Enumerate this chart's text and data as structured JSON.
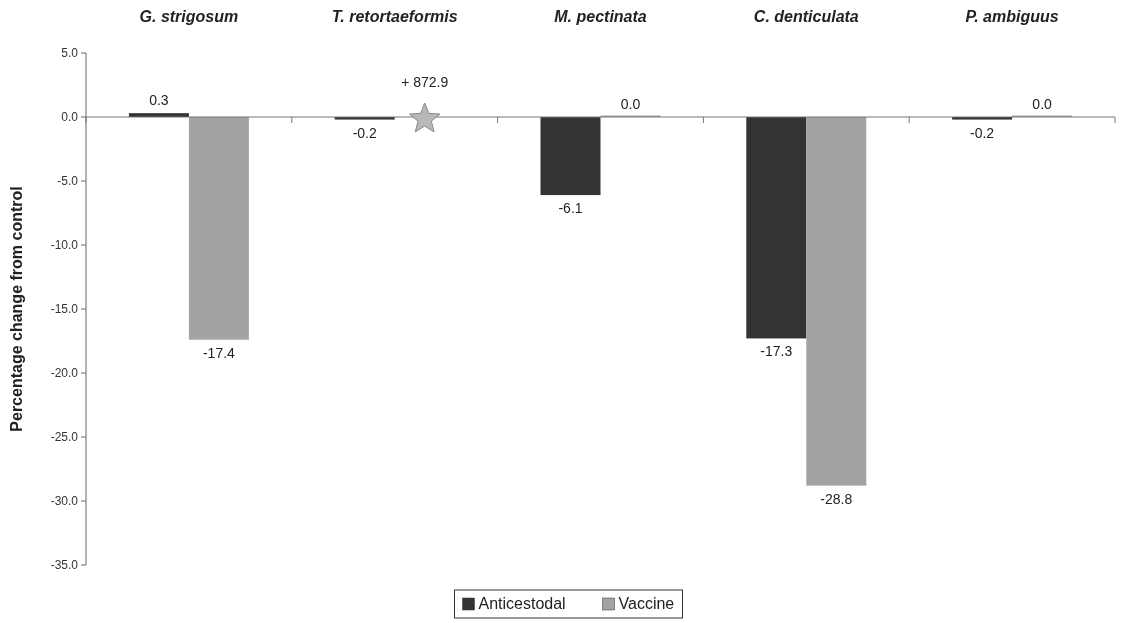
{
  "chart_data": {
    "type": "bar",
    "ylabel": "Percentage change from control",
    "categories": [
      "G. strigosum",
      "T. retortaeformis",
      "M. pectinata",
      "C. denticulata",
      "P. ambiguus"
    ],
    "series": [
      {
        "name": "Anticestodal",
        "color": "#333333",
        "values": [
          0.3,
          -0.2,
          -6.1,
          -17.3,
          -0.2
        ],
        "value_labels": [
          "0.3",
          "-0.2",
          "-6.1",
          "-17.3",
          "-0.2"
        ]
      },
      {
        "name": "Vaccine",
        "color": "#a3a3a3",
        "values": [
          -17.4,
          null,
          0,
          -28.8,
          0
        ],
        "value_labels": [
          "-17.4",
          null,
          "0.0",
          "-28.8",
          "0.0"
        ]
      }
    ],
    "annotations": [
      "+ 872.9"
    ],
    "ylim": [
      -35,
      5
    ],
    "yticks": [
      {
        "value": 5,
        "label": "5.0"
      },
      {
        "value": 0,
        "label": "0.0"
      },
      {
        "value": -5,
        "label": "-5.0"
      },
      {
        "value": -10,
        "label": "-10.0"
      },
      {
        "value": -15,
        "label": "-15.0"
      },
      {
        "value": -20,
        "label": "-20.0"
      },
      {
        "value": -25,
        "label": "-25.0"
      },
      {
        "value": -30,
        "label": "-30.0"
      },
      {
        "value": -35,
        "label": "-35.0"
      }
    ],
    "legend": "bottom"
  }
}
